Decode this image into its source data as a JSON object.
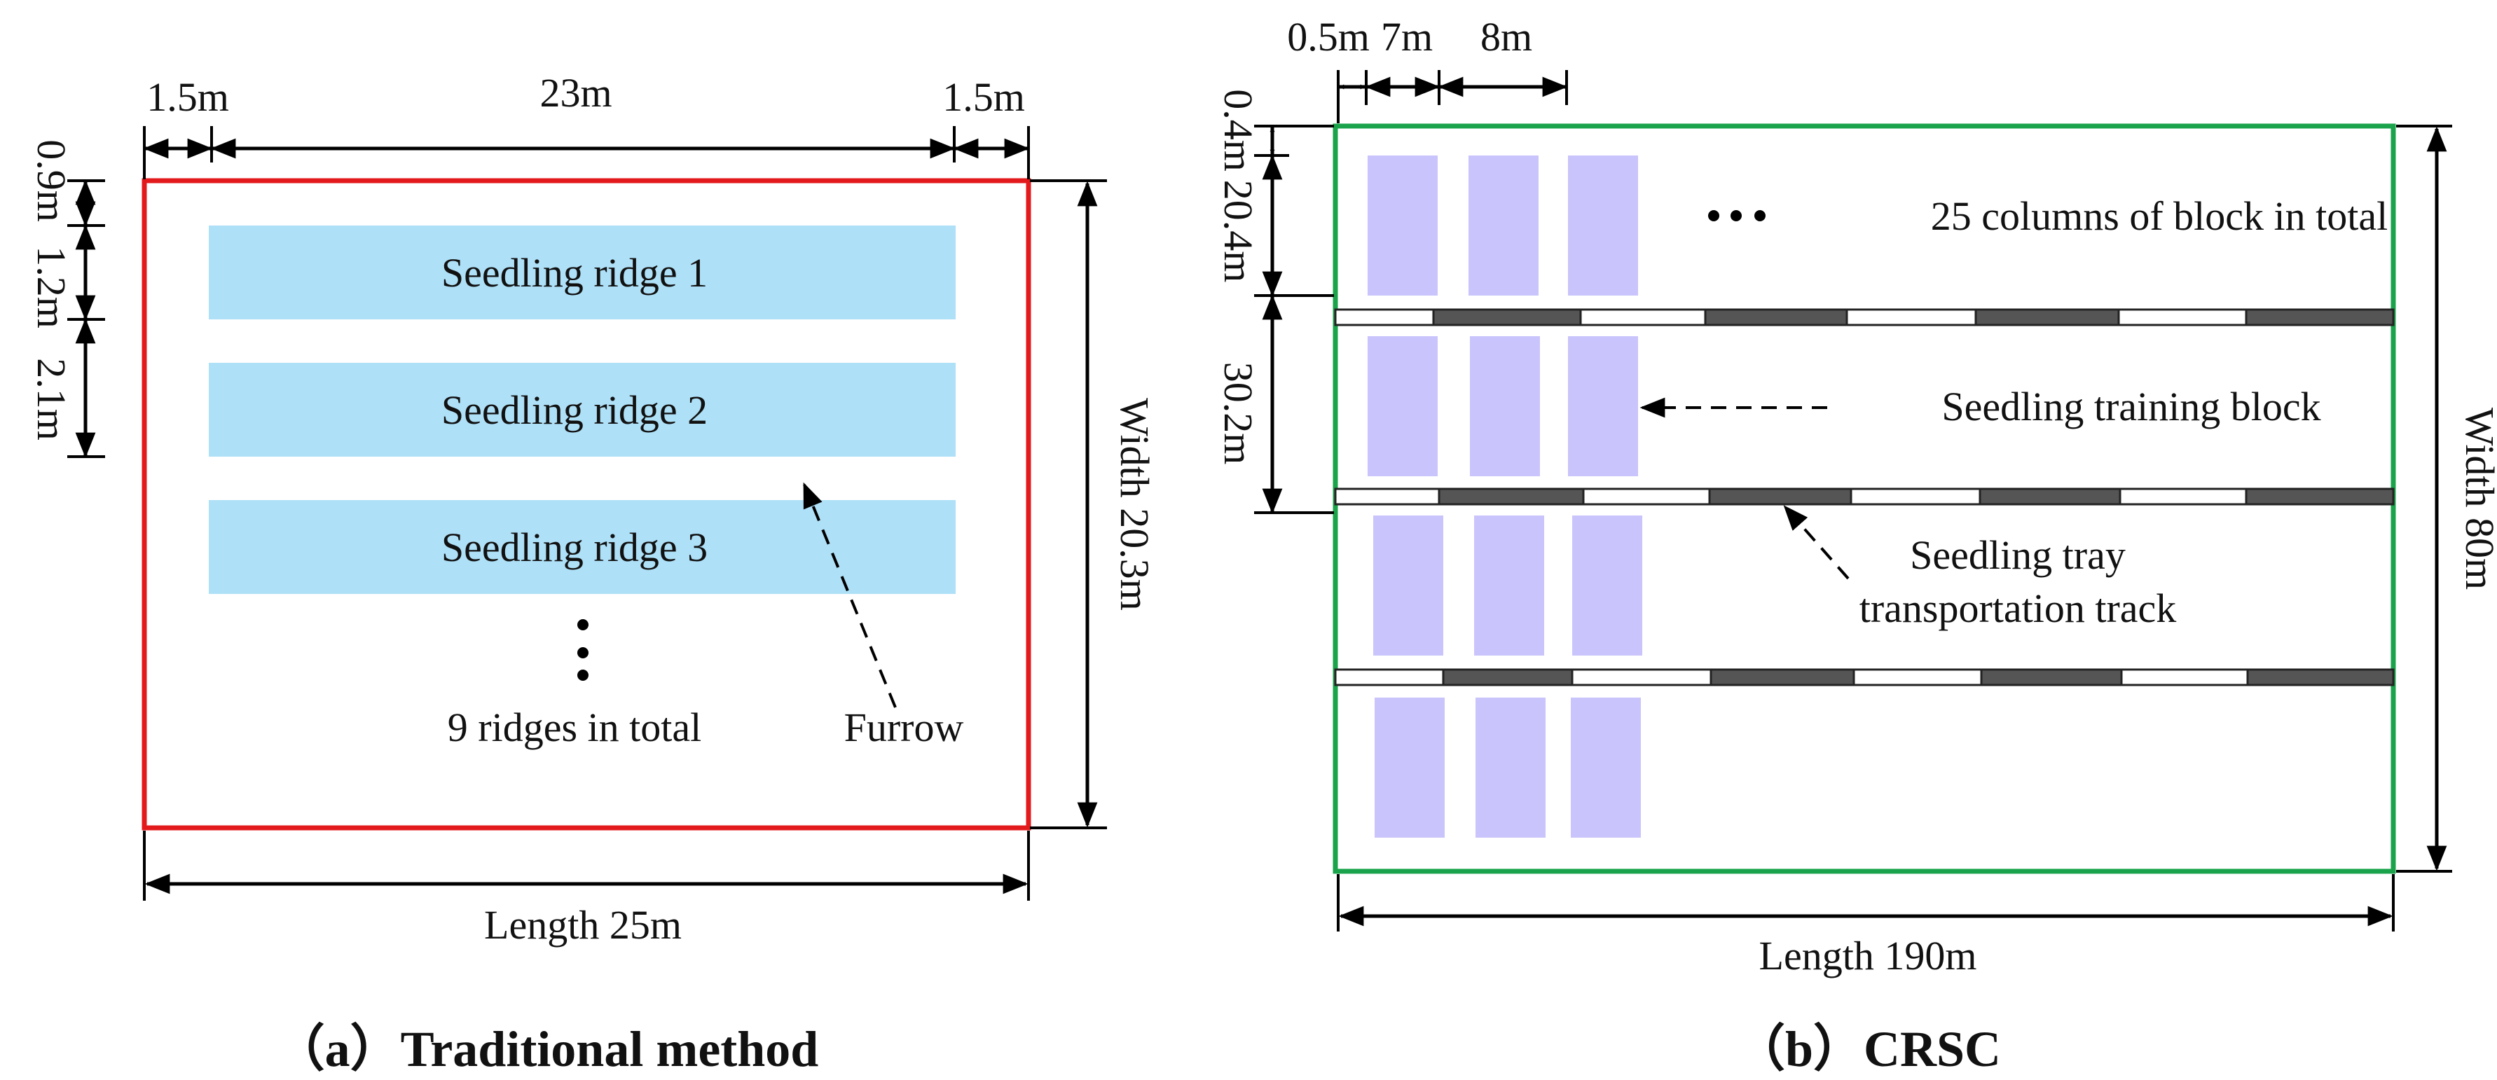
{
  "colors": {
    "traditional_border": "#e31a1c",
    "crsc_border": "#1aa34a",
    "ridge_fill": "#aee0f7",
    "block_fill": "#c9c4fb",
    "track_dark": "#555555",
    "track_light": "#ffffff"
  },
  "traditional": {
    "caption": "（a）Traditional method",
    "dim_top_left": "1.5m",
    "dim_top_mid": "23m",
    "dim_top_right": "1.5m",
    "dim_left_1": "0.9m",
    "dim_left_2": "1.2m",
    "dim_left_3": "2.1m",
    "width_label": "Width 20.3m",
    "length_label": "Length 25m",
    "ridges": [
      "Seedling ridge 1",
      "Seedling ridge 2",
      "Seedling ridge 3"
    ],
    "total_label": "9 ridges in total",
    "furrow_label": "Furrow"
  },
  "crsc": {
    "caption": "（b）CRSC",
    "dim_top_1": "0.5m",
    "dim_top_2": "7m",
    "dim_top_3": "8m",
    "dim_left_1": "0.4m",
    "dim_left_2": "20.4m",
    "dim_left_3": "30.2m",
    "width_label": "Width 80m",
    "length_label": "Length 190m",
    "columns_label": "25 columns of block in total",
    "block_label": "Seedling training block",
    "track_label_line1": "Seedling tray",
    "track_label_line2": "transportation track"
  }
}
